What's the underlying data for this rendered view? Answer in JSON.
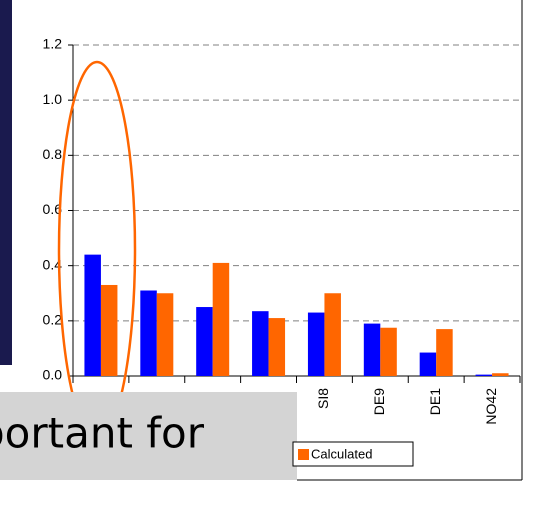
{
  "chart_data": {
    "type": "bar",
    "categories": [
      null,
      null,
      null,
      null,
      "SI8",
      "DE9",
      "DE1",
      "NO42"
    ],
    "series": [
      {
        "name": null,
        "color": "#0000ff",
        "values": [
          0.44,
          0.31,
          0.25,
          0.235,
          0.23,
          0.19,
          0.085,
          0.005
        ]
      },
      {
        "name": "Calculated",
        "color": "#ff6600",
        "values": [
          0.33,
          0.3,
          0.41,
          0.21,
          0.3,
          0.175,
          0.17,
          0.01
        ]
      }
    ],
    "ylim": [
      0,
      1.2
    ],
    "yticks": [
      {
        "value": 0,
        "label": "0.0"
      },
      0.2,
      0.4,
      0.6,
      0.8,
      {
        "value": 1,
        "label": "1.0"
      },
      1.2
    ],
    "grid": true,
    "annotation": "portant for"
  }
}
